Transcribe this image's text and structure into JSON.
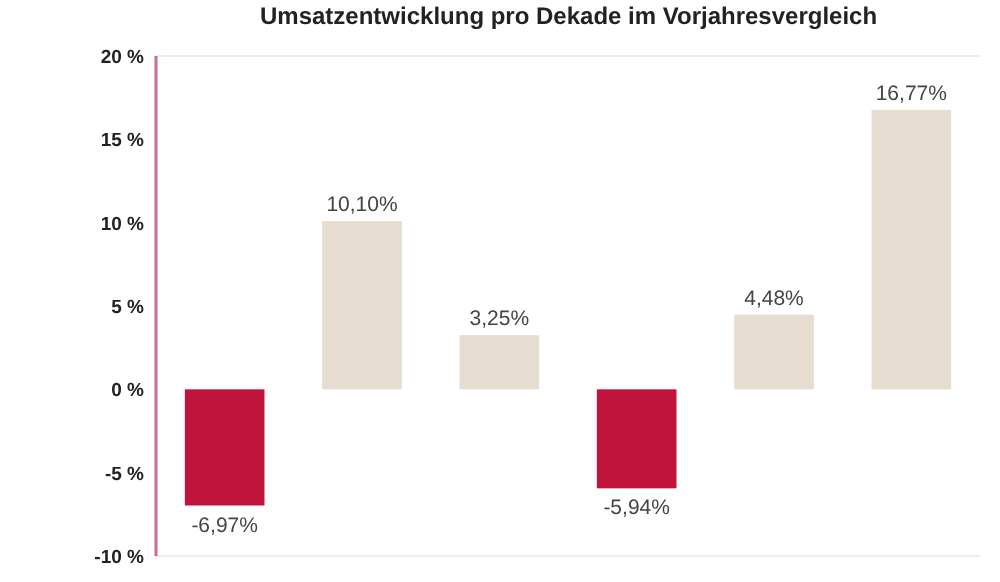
{
  "chart_data": {
    "type": "bar",
    "title": "Umsatzentwicklung pro Dekade im Vorjahresvergleich",
    "categories": [
      null,
      null,
      null,
      null,
      null,
      null
    ],
    "values": [
      -6.97,
      10.1,
      3.25,
      -5.94,
      4.48,
      16.77
    ],
    "value_labels": [
      "-6,97%",
      "10,10%",
      "3,25%",
      "-5,94%",
      "4,48%",
      "16,77%"
    ],
    "colors": [
      "#c0143c",
      "#e6ddd0",
      "#e6ddd0",
      "#c0143c",
      "#e6ddd0",
      "#e6ddd0"
    ],
    "ylim": [
      -10,
      20
    ],
    "yticks": [
      {
        "value": 20,
        "label": "20 %"
      },
      {
        "value": 15,
        "label": "15 %"
      },
      {
        "value": 10,
        "label": "10 %"
      },
      {
        "value": 5,
        "label": "5 %"
      },
      {
        "value": 0,
        "label": "0 %"
      },
      {
        "value": -5,
        "label": "-5 %"
      },
      {
        "value": -10,
        "label": "-10 %"
      }
    ],
    "grid": false
  }
}
